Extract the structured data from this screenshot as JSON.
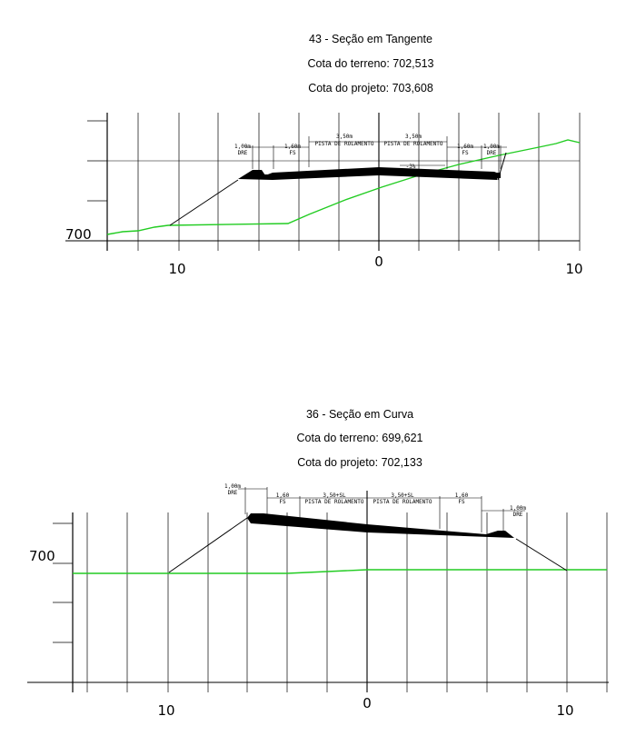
{
  "sections": [
    {
      "id": "tangent",
      "title": "43 - Seção em Tangente",
      "terrain_level": "Cota do terreno: 702,513",
      "design_level": "Cota do projeto: 703,608",
      "elevation_label": "700",
      "offset_labels": {
        "left": "10",
        "center": "0",
        "right": "10"
      },
      "dimensions": {
        "dre_left": "1,00m",
        "dre_left_sub": "DRE",
        "fs_left": "1,60m",
        "fs_left_sub": "FS",
        "lane_left": "3,50m",
        "lane_left_sub": "PISTA DE ROLAMENTO",
        "lane_right": "3,50m",
        "lane_right_sub": "PISTA DE ROLAMENTO",
        "fs_right": "1,60m",
        "fs_right_sub": "FS",
        "dre_right": "1,00m",
        "dre_right_sub": "DRE"
      },
      "slope_label": "-3%",
      "terrain_color": "#22cc22"
    },
    {
      "id": "curve",
      "title": "36 - Seção em Curva",
      "terrain_level": "Cota do terreno: 699,621",
      "design_level": "Cota do projeto: 702,133",
      "elevation_label": "700",
      "offset_labels": {
        "left": "10",
        "center": "0",
        "right": "10"
      },
      "dimensions": {
        "dre_left": "1,00m",
        "dre_left_sub": "DRE",
        "fs_left": "1,60",
        "fs_left_sub": "FS",
        "lane_left": "3,50+SL",
        "lane_left_sub": "PISTA DE ROLAMENTO",
        "lane_right": "3,50+SL",
        "lane_right_sub": "PISTA DE ROLAMENTO",
        "fs_right": "1,60",
        "fs_right_sub": "FS",
        "dre_right": "1,00m",
        "dre_right_sub": "DRE"
      },
      "terrain_color": "#22cc22"
    }
  ]
}
